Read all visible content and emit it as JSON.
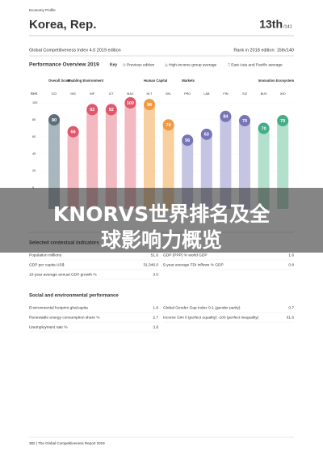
{
  "header": {
    "kicker": "Economy Profile",
    "title": "Korea, Rep.",
    "rank": "13th",
    "rank_of": "/141",
    "edition": "Global Competitiveness Index 4.0 2019 edition",
    "previous_rank": "Rank in 2018 edition: 15th/140"
  },
  "chart_data": {
    "type": "bar",
    "title": "Performance Overview 2019",
    "key_title": "Key",
    "key": [
      "◇ Previous edition",
      "△ High-income group average",
      "□ East Asia and Pacific average"
    ],
    "groups": [
      {
        "name": "Overall Score",
        "color": "#5b6e7a",
        "fill": "#a9b6be",
        "count": 1
      },
      {
        "name": "Enabling Environment",
        "color": "#e0566a",
        "fill": "#f2b9c1",
        "count": 4
      },
      {
        "name": "Human Capital",
        "color": "#ef9a45",
        "fill": "#f8cf9f",
        "count": 2
      },
      {
        "name": "Markets",
        "color": "#7775b6",
        "fill": "#c6c4e3",
        "count": 4
      },
      {
        "name": "Innovation Ecosystem",
        "color": "#44ad88",
        "fill": "#b3dfcd",
        "count": 2
      }
    ],
    "y_label": "Best",
    "categories": [
      "GCI",
      "INS",
      "INF",
      "ICT",
      "MAC",
      "HLT",
      "SKL",
      "PRO",
      "LAB",
      "FIN",
      "SIZ",
      "BUS",
      "INO"
    ],
    "values": [
      80,
      66,
      92,
      92,
      100,
      98,
      74,
      56,
      63,
      84,
      79,
      70,
      79
    ],
    "ylim": [
      0,
      100
    ],
    "yticks": [
      0,
      20,
      40,
      60,
      80,
      100
    ]
  },
  "banner": {
    "lines": [
      "KNORVS世界排名及全",
      "球影响力概览"
    ]
  },
  "contextual": {
    "title": "Selected contextual indicators",
    "rows": [
      [
        {
          "label": "Population millions",
          "value": "51.6"
        },
        {
          "label": "GDP (PPP) % world GDP",
          "value": "1.6"
        }
      ],
      [
        {
          "label": "GDP per capita US$",
          "value": "31,346.0"
        },
        {
          "label": "5-year average FDI inflows % GDP",
          "value": "0.8"
        }
      ],
      [
        {
          "label": "10-year average annual GDP growth %",
          "value": "3.0"
        }
      ]
    ]
  },
  "social": {
    "title": "Social and environmental performance",
    "rows": [
      [
        {
          "label": "Environmental footprint gha/capita",
          "value": "1.6"
        },
        {
          "label": "Global Gender Gap Index 0-1 (gender parity)",
          "value": "0.7"
        }
      ],
      [
        {
          "label": "Renewable energy consumption share %",
          "value": "2.7"
        },
        {
          "label": "Income Gini 0 (perfect equality) -100 (perfect inequality)",
          "value": "31.6"
        }
      ],
      [
        {
          "label": "Unemployment rate %",
          "value": "3.8"
        }
      ]
    ]
  },
  "footer": "382 | The Global Competitiveness Report 2019"
}
